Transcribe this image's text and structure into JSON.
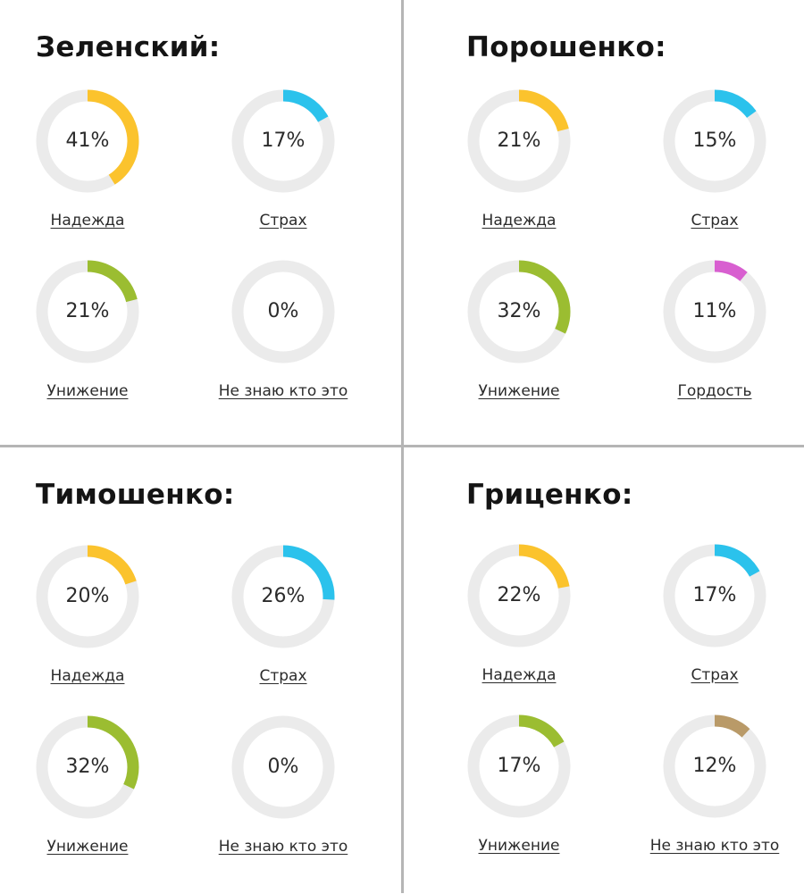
{
  "panels": [
    {
      "title": "Зеленский:",
      "items": [
        {
          "label": "Надежда",
          "percent": 41,
          "value_text": "41%",
          "color": "#fbc32d"
        },
        {
          "label": "Страх",
          "percent": 17,
          "value_text": "17%",
          "color": "#2bc2ec"
        },
        {
          "label": "Унижение",
          "percent": 21,
          "value_text": "21%",
          "color": "#9bbd31"
        },
        {
          "label": "Не знаю кто это",
          "percent": 0,
          "value_text": "0%",
          "color": "#c8a477"
        }
      ]
    },
    {
      "title": "Порошенко:",
      "items": [
        {
          "label": "Надежда",
          "percent": 21,
          "value_text": "21%",
          "color": "#fbc32d"
        },
        {
          "label": "Страх",
          "percent": 15,
          "value_text": "15%",
          "color": "#2bc2ec"
        },
        {
          "label": "Унижение",
          "percent": 32,
          "value_text": "32%",
          "color": "#9bbd31"
        },
        {
          "label": "Гордость",
          "percent": 11,
          "value_text": "11%",
          "color": "#d85fd0"
        }
      ]
    },
    {
      "title": "Тимошенко:",
      "items": [
        {
          "label": "Надежда",
          "percent": 20,
          "value_text": "20%",
          "color": "#fbc32d"
        },
        {
          "label": "Страх",
          "percent": 26,
          "value_text": "26%",
          "color": "#2bc2ec"
        },
        {
          "label": "Унижение",
          "percent": 32,
          "value_text": "32%",
          "color": "#9bbd31"
        },
        {
          "label": "Не знаю кто это",
          "percent": 0,
          "value_text": "0%",
          "color": "#c8a477"
        }
      ]
    },
    {
      "title": "Гриценко:",
      "items": [
        {
          "label": "Надежда",
          "percent": 22,
          "value_text": "22%",
          "color": "#fbc32d"
        },
        {
          "label": "Страх",
          "percent": 17,
          "value_text": "17%",
          "color": "#2bc2ec"
        },
        {
          "label": "Унижение",
          "percent": 17,
          "value_text": "17%",
          "color": "#9bbd31"
        },
        {
          "label": "Не знаю кто это",
          "percent": 12,
          "value_text": "12%",
          "color": "#b99a68"
        }
      ]
    }
  ],
  "track_color": "#ebebeb",
  "chart_data": [
    {
      "type": "donut",
      "title": "Зеленский:",
      "categories": [
        "Надежда",
        "Страх",
        "Унижение",
        "Не знаю кто это"
      ],
      "values": [
        41,
        17,
        21,
        0
      ]
    },
    {
      "type": "donut",
      "title": "Порошенко:",
      "categories": [
        "Надежда",
        "Страх",
        "Унижение",
        "Гордость"
      ],
      "values": [
        21,
        15,
        32,
        11
      ]
    },
    {
      "type": "donut",
      "title": "Тимошенко:",
      "categories": [
        "Надежда",
        "Страх",
        "Унижение",
        "Не знаю кто это"
      ],
      "values": [
        20,
        26,
        32,
        0
      ]
    },
    {
      "type": "donut",
      "title": "Гриценко:",
      "categories": [
        "Надежда",
        "Страх",
        "Унижение",
        "Не знаю кто это"
      ],
      "values": [
        22,
        17,
        17,
        12
      ]
    }
  ]
}
